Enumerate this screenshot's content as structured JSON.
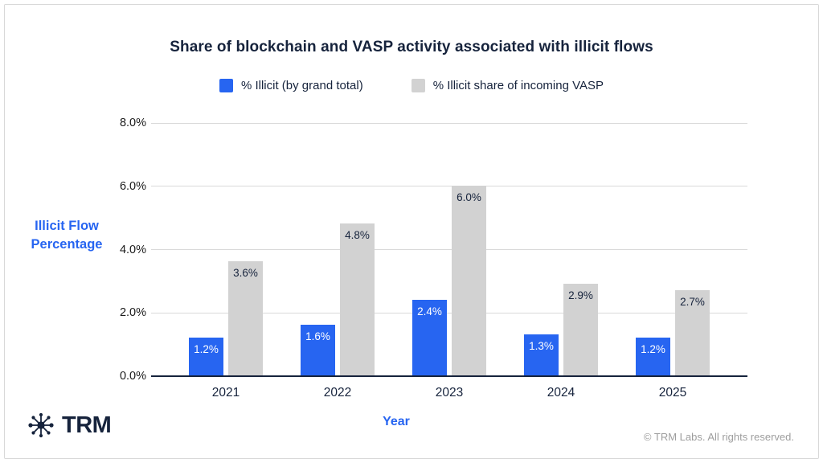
{
  "chart_data": {
    "type": "bar",
    "title": "Share of blockchain and VASP activity associated with illicit flows",
    "categories": [
      "2021",
      "2022",
      "2023",
      "2024",
      "2025"
    ],
    "series": [
      {
        "name": "% Illicit (by grand total)",
        "color": "#2765f1",
        "label_color": "#ffffff",
        "values": [
          1.2,
          1.6,
          2.4,
          1.3,
          1.2
        ]
      },
      {
        "name": "% Illicit share of incoming VASP",
        "color": "#d2d2d2",
        "label_color": "#16233c",
        "values": [
          3.6,
          4.8,
          6.0,
          2.9,
          2.7
        ]
      }
    ],
    "value_suffix": "%",
    "xlabel": "Year",
    "ylabel": "Illicit Flow Percentage",
    "ylim": [
      0,
      8
    ],
    "y_ticks": [
      0,
      2,
      4,
      6,
      8
    ],
    "y_tick_labels": [
      "0.0%",
      "2.0%",
      "4.0%",
      "6.0%",
      "8.0%"
    ],
    "grid": true,
    "legend_position": "top"
  },
  "colors": {
    "accent_blue": "#2765f1",
    "bar_gray": "#d2d2d2",
    "dark_navy": "#16233c",
    "gridline": "#d9d9d9",
    "muted_gray": "#9e9e9e"
  },
  "footer": {
    "logo_text": "TRM",
    "logo_icon": "network-asterisk-icon",
    "copyright": "© TRM Labs. All rights reserved."
  }
}
